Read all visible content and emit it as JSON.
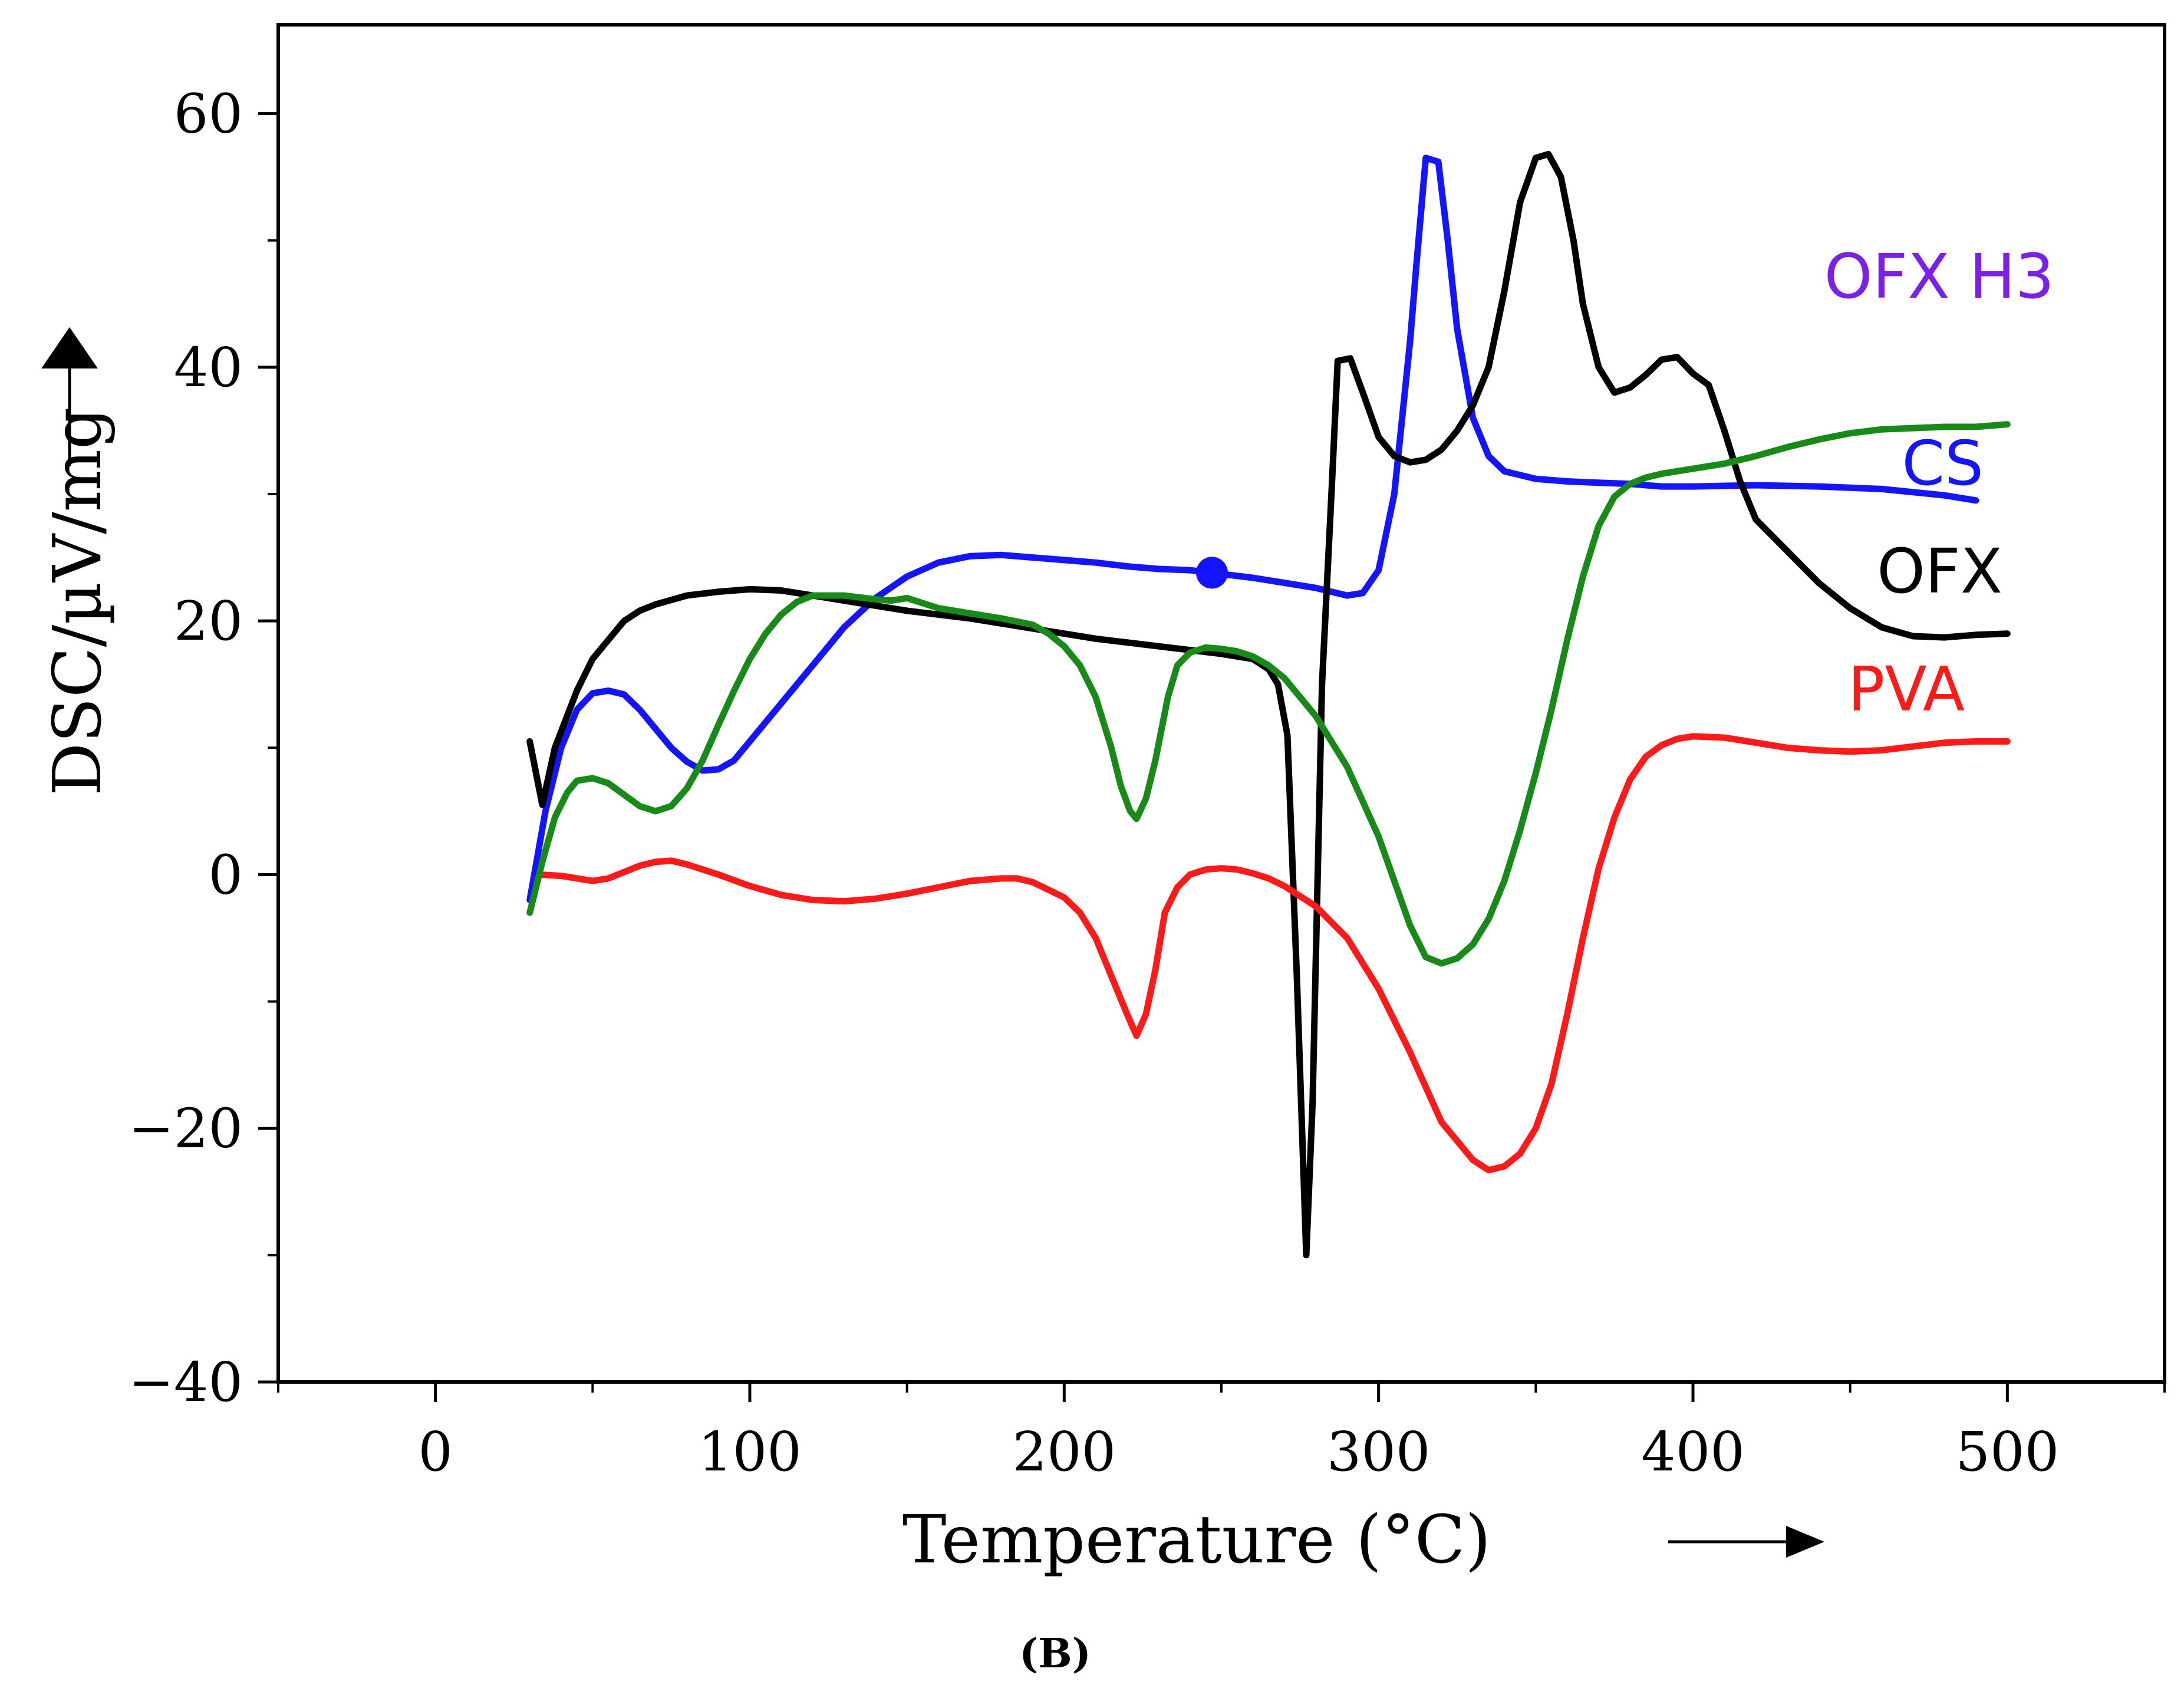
{
  "chart_data": {
    "type": "line",
    "title": "",
    "xlabel": "Temperature (°C)",
    "ylabel": "DSC/µV/mg",
    "caption": "(B)",
    "xlim": [
      -50,
      550
    ],
    "ylim": [
      -40,
      67
    ],
    "x_ticks": [
      0,
      100,
      200,
      300,
      400,
      500
    ],
    "x_tick_labels": [
      "0",
      "100",
      "200",
      "300",
      "400",
      "500"
    ],
    "y_ticks": [
      -40,
      -20,
      0,
      20,
      40,
      60
    ],
    "y_tick_labels": [
      "−40",
      "−20",
      "0",
      "20",
      "40",
      "60"
    ],
    "grid": false,
    "legend_position": "right",
    "series": [
      {
        "name": "OFX H3",
        "color": "#7b20e8",
        "points": []
      },
      {
        "name": "CS",
        "color": "#1414ff",
        "marker": {
          "x": 247,
          "y": 23.8
        },
        "points": [
          [
            30,
            -2
          ],
          [
            35,
            5
          ],
          [
            40,
            10
          ],
          [
            45,
            13
          ],
          [
            50,
            14.3
          ],
          [
            55,
            14.5
          ],
          [
            60,
            14.2
          ],
          [
            65,
            13
          ],
          [
            70,
            11.5
          ],
          [
            75,
            10
          ],
          [
            80,
            8.9
          ],
          [
            85,
            8.2
          ],
          [
            90,
            8.3
          ],
          [
            95,
            9
          ],
          [
            100,
            10.5
          ],
          [
            110,
            13.5
          ],
          [
            120,
            16.5
          ],
          [
            130,
            19.5
          ],
          [
            140,
            21.8
          ],
          [
            150,
            23.5
          ],
          [
            160,
            24.6
          ],
          [
            170,
            25.1
          ],
          [
            180,
            25.2
          ],
          [
            190,
            25
          ],
          [
            200,
            24.8
          ],
          [
            210,
            24.6
          ],
          [
            220,
            24.3
          ],
          [
            230,
            24.1
          ],
          [
            240,
            24
          ],
          [
            250,
            23.7
          ],
          [
            260,
            23.4
          ],
          [
            270,
            23
          ],
          [
            280,
            22.6
          ],
          [
            290,
            22
          ],
          [
            295,
            22.2
          ],
          [
            300,
            24
          ],
          [
            305,
            30
          ],
          [
            310,
            42
          ],
          [
            312,
            48
          ],
          [
            315,
            56.5
          ],
          [
            319,
            56.2
          ],
          [
            322,
            50
          ],
          [
            325,
            43
          ],
          [
            330,
            36
          ],
          [
            335,
            33
          ],
          [
            340,
            31.8
          ],
          [
            350,
            31.2
          ],
          [
            360,
            31
          ],
          [
            370,
            30.9
          ],
          [
            380,
            30.8
          ],
          [
            390,
            30.6
          ],
          [
            400,
            30.6
          ],
          [
            420,
            30.7
          ],
          [
            440,
            30.6
          ],
          [
            460,
            30.4
          ],
          [
            480,
            29.9
          ],
          [
            490,
            29.5
          ]
        ]
      },
      {
        "name": "OFX",
        "color": "#000000",
        "points": [
          [
            30,
            10.5
          ],
          [
            34,
            5.5
          ],
          [
            38,
            10
          ],
          [
            45,
            14.5
          ],
          [
            50,
            17
          ],
          [
            55,
            18.5
          ],
          [
            60,
            20
          ],
          [
            65,
            20.8
          ],
          [
            70,
            21.3
          ],
          [
            80,
            22
          ],
          [
            90,
            22.3
          ],
          [
            100,
            22.5
          ],
          [
            110,
            22.4
          ],
          [
            120,
            22
          ],
          [
            130,
            21.6
          ],
          [
            140,
            21.2
          ],
          [
            150,
            20.8
          ],
          [
            160,
            20.5
          ],
          [
            170,
            20.2
          ],
          [
            180,
            19.8
          ],
          [
            190,
            19.4
          ],
          [
            200,
            19
          ],
          [
            210,
            18.6
          ],
          [
            220,
            18.3
          ],
          [
            230,
            18
          ],
          [
            240,
            17.7
          ],
          [
            250,
            17.4
          ],
          [
            260,
            17
          ],
          [
            265,
            16.2
          ],
          [
            268,
            15
          ],
          [
            271,
            11
          ],
          [
            274,
            -8
          ],
          [
            277,
            -30
          ],
          [
            279,
            -18
          ],
          [
            282,
            15
          ],
          [
            285,
            30
          ],
          [
            287,
            40.5
          ],
          [
            291,
            40.7
          ],
          [
            295,
            38
          ],
          [
            300,
            34.5
          ],
          [
            305,
            33
          ],
          [
            310,
            32.5
          ],
          [
            315,
            32.7
          ],
          [
            320,
            33.5
          ],
          [
            325,
            35
          ],
          [
            330,
            37
          ],
          [
            335,
            40
          ],
          [
            340,
            46
          ],
          [
            345,
            53
          ],
          [
            350,
            56.5
          ],
          [
            354,
            56.8
          ],
          [
            358,
            55
          ],
          [
            362,
            50
          ],
          [
            365,
            45
          ],
          [
            370,
            40
          ],
          [
            375,
            38
          ],
          [
            380,
            38.4
          ],
          [
            385,
            39.4
          ],
          [
            390,
            40.6
          ],
          [
            395,
            40.8
          ],
          [
            400,
            39.5
          ],
          [
            405,
            38.6
          ],
          [
            410,
            35
          ],
          [
            415,
            31
          ],
          [
            420,
            28
          ],
          [
            430,
            25.5
          ],
          [
            440,
            23
          ],
          [
            450,
            21
          ],
          [
            460,
            19.5
          ],
          [
            470,
            18.8
          ],
          [
            480,
            18.7
          ],
          [
            490,
            18.9
          ],
          [
            500,
            19
          ]
        ]
      },
      {
        "name": "PVA",
        "color": "#ff1a1a",
        "points": [
          [
            33,
            0
          ],
          [
            40,
            -0.1
          ],
          [
            50,
            -0.5
          ],
          [
            55,
            -0.3
          ],
          [
            60,
            0.2
          ],
          [
            65,
            0.7
          ],
          [
            70,
            1
          ],
          [
            75,
            1.1
          ],
          [
            80,
            0.8
          ],
          [
            90,
            0
          ],
          [
            100,
            -0.9
          ],
          [
            110,
            -1.6
          ],
          [
            120,
            -2
          ],
          [
            130,
            -2.1
          ],
          [
            140,
            -1.9
          ],
          [
            150,
            -1.5
          ],
          [
            160,
            -1
          ],
          [
            170,
            -0.5
          ],
          [
            180,
            -0.3
          ],
          [
            185,
            -0.3
          ],
          [
            190,
            -0.6
          ],
          [
            200,
            -1.8
          ],
          [
            205,
            -3
          ],
          [
            210,
            -5
          ],
          [
            215,
            -8
          ],
          [
            220,
            -11
          ],
          [
            223,
            -12.7
          ],
          [
            226,
            -11
          ],
          [
            229,
            -7.5
          ],
          [
            232,
            -3
          ],
          [
            236,
            -1
          ],
          [
            240,
            0
          ],
          [
            245,
            0.4
          ],
          [
            250,
            0.5
          ],
          [
            255,
            0.4
          ],
          [
            260,
            0.1
          ],
          [
            265,
            -0.3
          ],
          [
            270,
            -0.9
          ],
          [
            280,
            -2.5
          ],
          [
            290,
            -5
          ],
          [
            300,
            -9
          ],
          [
            310,
            -14
          ],
          [
            320,
            -19.5
          ],
          [
            330,
            -22.5
          ],
          [
            335,
            -23.3
          ],
          [
            340,
            -23
          ],
          [
            345,
            -22
          ],
          [
            350,
            -20
          ],
          [
            355,
            -16.5
          ],
          [
            360,
            -11
          ],
          [
            365,
            -5
          ],
          [
            370,
            0.5
          ],
          [
            375,
            4.5
          ],
          [
            380,
            7.5
          ],
          [
            385,
            9.3
          ],
          [
            390,
            10.2
          ],
          [
            395,
            10.7
          ],
          [
            400,
            10.9
          ],
          [
            410,
            10.8
          ],
          [
            420,
            10.4
          ],
          [
            430,
            10
          ],
          [
            440,
            9.8
          ],
          [
            450,
            9.7
          ],
          [
            460,
            9.8
          ],
          [
            470,
            10.1
          ],
          [
            480,
            10.4
          ],
          [
            490,
            10.5
          ],
          [
            500,
            10.5
          ]
        ]
      },
      {
        "name": "",
        "color": "#178a17",
        "points": [
          [
            30,
            -3
          ],
          [
            34,
            1
          ],
          [
            38,
            4.5
          ],
          [
            42,
            6.5
          ],
          [
            45,
            7.4
          ],
          [
            50,
            7.6
          ],
          [
            55,
            7.2
          ],
          [
            60,
            6.3
          ],
          [
            65,
            5.4
          ],
          [
            70,
            5
          ],
          [
            75,
            5.4
          ],
          [
            80,
            6.8
          ],
          [
            85,
            9
          ],
          [
            90,
            11.8
          ],
          [
            95,
            14.5
          ],
          [
            100,
            17
          ],
          [
            105,
            19
          ],
          [
            110,
            20.5
          ],
          [
            115,
            21.5
          ],
          [
            120,
            22
          ],
          [
            130,
            22
          ],
          [
            140,
            21.7
          ],
          [
            145,
            21.6
          ],
          [
            150,
            21.8
          ],
          [
            155,
            21.4
          ],
          [
            160,
            21
          ],
          [
            170,
            20.6
          ],
          [
            180,
            20.2
          ],
          [
            190,
            19.7
          ],
          [
            195,
            19
          ],
          [
            200,
            18
          ],
          [
            205,
            16.5
          ],
          [
            210,
            14
          ],
          [
            215,
            10
          ],
          [
            218,
            7
          ],
          [
            221,
            5
          ],
          [
            223,
            4.4
          ],
          [
            226,
            6
          ],
          [
            229,
            9
          ],
          [
            233,
            14
          ],
          [
            236,
            16.5
          ],
          [
            240,
            17.5
          ],
          [
            245,
            17.9
          ],
          [
            250,
            17.8
          ],
          [
            255,
            17.6
          ],
          [
            260,
            17.2
          ],
          [
            265,
            16.5
          ],
          [
            270,
            15.5
          ],
          [
            280,
            12.5
          ],
          [
            290,
            8.5
          ],
          [
            300,
            3
          ],
          [
            305,
            -0.5
          ],
          [
            310,
            -4
          ],
          [
            315,
            -6.5
          ],
          [
            320,
            -7
          ],
          [
            325,
            -6.6
          ],
          [
            330,
            -5.5
          ],
          [
            335,
            -3.5
          ],
          [
            340,
            -0.5
          ],
          [
            345,
            3.5
          ],
          [
            350,
            8
          ],
          [
            355,
            13
          ],
          [
            360,
            18.5
          ],
          [
            365,
            23.5
          ],
          [
            370,
            27.5
          ],
          [
            375,
            29.8
          ],
          [
            380,
            30.8
          ],
          [
            385,
            31.3
          ],
          [
            390,
            31.6
          ],
          [
            400,
            32
          ],
          [
            410,
            32.4
          ],
          [
            420,
            33
          ],
          [
            430,
            33.7
          ],
          [
            440,
            34.3
          ],
          [
            450,
            34.8
          ],
          [
            460,
            35.1
          ],
          [
            470,
            35.2
          ],
          [
            480,
            35.3
          ],
          [
            490,
            35.3
          ],
          [
            500,
            35.5
          ]
        ]
      }
    ],
    "arrow_x": "→",
    "arrow_y": "↑"
  },
  "legend": {
    "ofx_h3": {
      "label": "OFX H3",
      "color": "#7b20e8"
    },
    "cs": {
      "label": "CS",
      "color": "#1414ff"
    },
    "ofx": {
      "label": "OFX",
      "color": "#000000"
    },
    "pva": {
      "label": "PVA",
      "color": "#ff1a1a"
    }
  }
}
